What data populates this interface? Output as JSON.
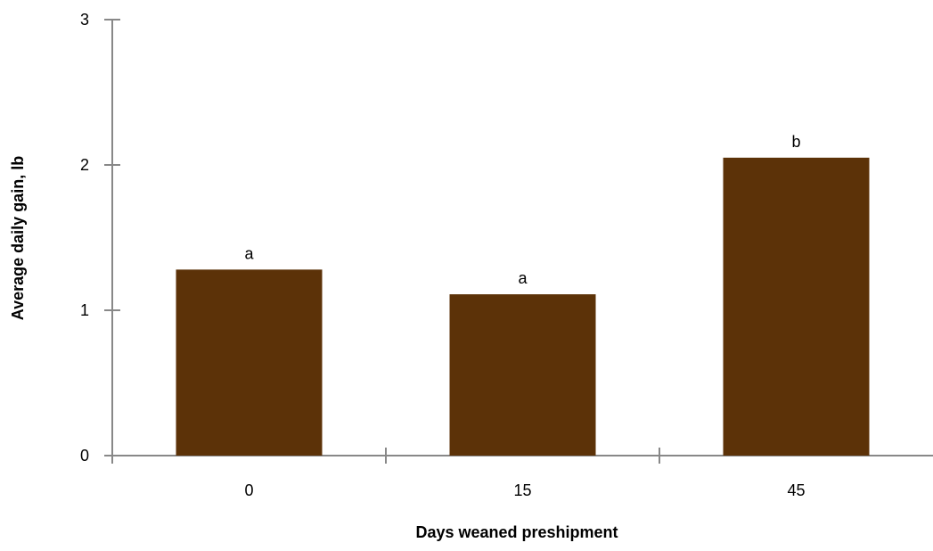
{
  "chart_data": {
    "type": "bar",
    "title": "",
    "xlabel": "Days weaned preshipment",
    "ylabel": "Average daily gain, lb",
    "categories": [
      "0",
      "15",
      "45"
    ],
    "values": [
      1.28,
      1.11,
      2.05
    ],
    "data_labels": [
      "a",
      "a",
      "b"
    ],
    "ylim": [
      0,
      3
    ],
    "yticks": [
      0,
      1,
      2,
      3
    ],
    "ytick_labels": [
      "0",
      "1",
      "2",
      "3"
    ],
    "grid": false,
    "legend": "none",
    "colors": {
      "bar": "#5c3208",
      "axis": "#888888"
    }
  }
}
